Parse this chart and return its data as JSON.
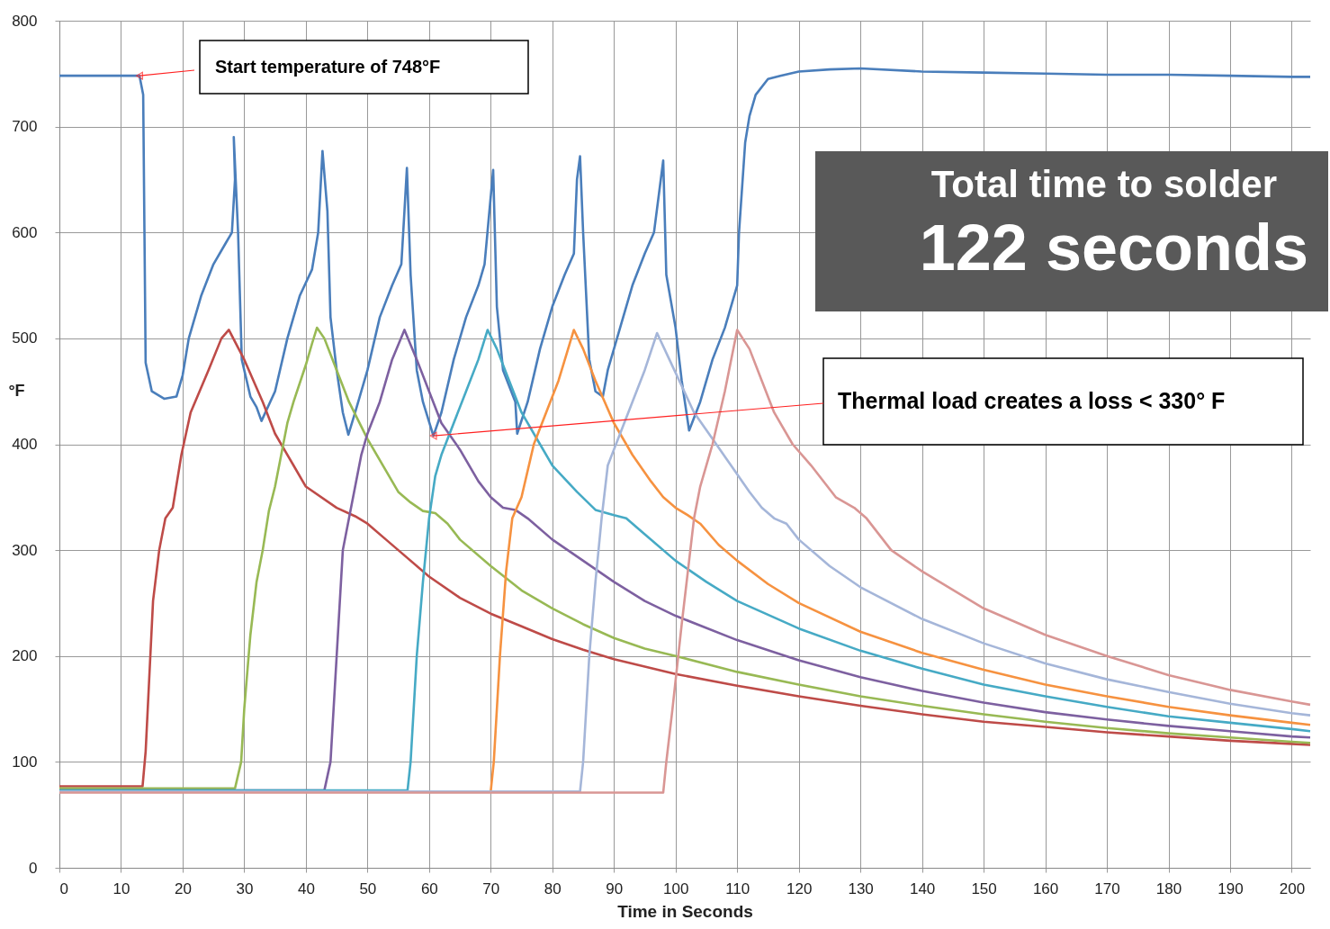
{
  "chart_data": {
    "type": "line",
    "xlabel": "Time in Seconds",
    "ylabel": "°F",
    "xlim": [
      0,
      203
    ],
    "ylim": [
      0,
      800
    ],
    "xticks": [
      0,
      10,
      20,
      30,
      40,
      50,
      60,
      70,
      80,
      90,
      100,
      110,
      120,
      130,
      140,
      150,
      160,
      170,
      180,
      190,
      200
    ],
    "yticks": [
      0,
      100,
      200,
      300,
      400,
      500,
      600,
      700,
      800
    ],
    "grid": true,
    "legend": false,
    "annotations": [
      {
        "text": "Start  temperature of 748°F",
        "x": 13,
        "y": 748
      },
      {
        "text": "Thermal load creates a loss < 330° F",
        "x": 60.7,
        "y": 408
      },
      "Total time to solder",
      "122 seconds"
    ],
    "series": [
      {
        "color": "#4a7ebb",
        "x": [
          0,
          10,
          13,
          13.6,
          14,
          15,
          17,
          19,
          20,
          21,
          23,
          25,
          27,
          28,
          28.5,
          28.3,
          29,
          29.6,
          31,
          32,
          32.8,
          35,
          37,
          39,
          41,
          42,
          42.7,
          43.5,
          44,
          45,
          46,
          46.9,
          48,
          50,
          52,
          54,
          55.5,
          56,
          56.4,
          57,
          58,
          59,
          60.7,
          62,
          64,
          66,
          68,
          69,
          70.4,
          71,
          72,
          74,
          74.3,
          76,
          78,
          80,
          82,
          83.5,
          84,
          84.5,
          85,
          86,
          87,
          88.2,
          89,
          91,
          93,
          95,
          96.5,
          98,
          98.5,
          100,
          101,
          102.2,
          104,
          106,
          108,
          110,
          110.3,
          111.3,
          112,
          113,
          115,
          117,
          120,
          125,
          130,
          140,
          150,
          160,
          170,
          180,
          190,
          200,
          203
        ],
        "values": [
          748,
          748,
          748,
          730,
          477,
          450,
          443,
          445,
          465,
          500,
          540,
          570,
          590,
          600,
          650,
          690,
          600,
          480,
          445,
          435,
          422,
          450,
          500,
          540,
          565,
          600,
          677,
          620,
          520,
          470,
          430,
          409,
          430,
          470,
          520,
          550,
          570,
          620,
          661,
          560,
          470,
          440,
          408,
          430,
          480,
          520,
          550,
          570,
          659,
          530,
          470,
          440,
          410,
          440,
          490,
          530,
          560,
          580,
          650,
          672,
          600,
          480,
          450,
          445,
          470,
          510,
          550,
          580,
          600,
          668,
          560,
          510,
          460,
          413,
          440,
          480,
          510,
          550,
          600,
          685,
          710,
          730,
          745,
          748,
          752,
          754,
          755,
          752,
          751,
          750,
          749,
          749,
          748,
          747,
          747
        ]
      },
      {
        "color": "#be4b48",
        "x": [
          0,
          13.5,
          14,
          15.2,
          16.2,
          17.2,
          18.4,
          19.8,
          21.3,
          24.2,
          26.3,
          27.5,
          30,
          33,
          35,
          38,
          40,
          45,
          48,
          50,
          53,
          55,
          60,
          65,
          70,
          75,
          80,
          85,
          90,
          95,
          100,
          110,
          120,
          130,
          140,
          150,
          160,
          170,
          180,
          190,
          200,
          203
        ],
        "values": [
          77,
          77,
          110,
          252,
          300,
          330,
          340,
          390,
          430,
          470,
          500,
          508,
          480,
          440,
          410,
          380,
          360,
          340,
          332,
          325,
          310,
          300,
          275,
          255,
          240,
          228,
          216,
          206,
          197,
          190,
          183,
          172,
          162,
          153,
          145,
          138,
          133,
          128,
          124,
          120,
          117,
          116
        ]
      },
      {
        "color": "#98b954",
        "x": [
          0,
          28.5,
          29.5,
          30,
          31,
          32,
          33,
          34,
          35,
          36,
          37,
          38,
          40,
          41,
          41.8,
          43,
          45,
          47,
          50,
          53,
          55,
          57,
          59,
          61,
          63,
          65,
          70,
          75,
          80,
          85,
          90,
          95,
          100,
          110,
          120,
          130,
          140,
          150,
          160,
          170,
          180,
          190,
          200,
          203
        ],
        "values": [
          75,
          75,
          100,
          150,
          220,
          270,
          300,
          337,
          360,
          390,
          420,
          440,
          475,
          495,
          510,
          500,
          470,
          440,
          405,
          375,
          355,
          345,
          337,
          335,
          325,
          310,
          285,
          262,
          245,
          230,
          217,
          207,
          200,
          185,
          173,
          162,
          153,
          145,
          138,
          132,
          127,
          123,
          119,
          118
        ]
      },
      {
        "color": "#7d60a0",
        "x": [
          0,
          43,
          44,
          45,
          46,
          47,
          48,
          49,
          50,
          52,
          54,
          56,
          58,
          60,
          62,
          65,
          68,
          70,
          72,
          74,
          76,
          80,
          85,
          90,
          95,
          100,
          110,
          120,
          130,
          140,
          150,
          160,
          170,
          180,
          190,
          200,
          203
        ],
        "values": [
          73,
          73,
          100,
          200,
          300,
          330,
          360,
          390,
          410,
          440,
          480,
          508,
          480,
          450,
          420,
          395,
          365,
          350,
          340,
          338,
          330,
          310,
          290,
          270,
          252,
          238,
          215,
          196,
          180,
          167,
          156,
          147,
          140,
          134,
          129,
          124,
          123
        ]
      },
      {
        "color": "#46aac5",
        "x": [
          0,
          56.5,
          57,
          58,
          59,
          60,
          61,
          62,
          64,
          66,
          68,
          69.5,
          71,
          73,
          75,
          78,
          80,
          84,
          87,
          90,
          92,
          95,
          100,
          105,
          110,
          120,
          130,
          140,
          150,
          160,
          170,
          180,
          190,
          200,
          203
        ],
        "values": [
          73,
          73,
          100,
          200,
          270,
          330,
          370,
          390,
          420,
          450,
          480,
          508,
          490,
          460,
          430,
          400,
          380,
          355,
          338,
          333,
          330,
          315,
          290,
          270,
          252,
          226,
          205,
          188,
          173,
          162,
          152,
          143,
          137,
          131,
          129
        ]
      },
      {
        "color": "#f69240",
        "x": [
          0,
          70,
          70.5,
          71.5,
          72.5,
          73.5,
          75,
          77,
          79,
          81,
          83.5,
          85,
          87,
          90,
          93,
          96,
          98,
          100,
          102,
          104,
          107,
          110,
          115,
          120,
          130,
          140,
          150,
          160,
          170,
          180,
          190,
          200,
          203
        ],
        "values": [
          72,
          72,
          100,
          200,
          280,
          330,
          350,
          400,
          430,
          460,
          508,
          490,
          460,
          420,
          390,
          365,
          350,
          340,
          333,
          325,
          305,
          290,
          268,
          250,
          223,
          203,
          187,
          173,
          162,
          152,
          144,
          137,
          135
        ]
      },
      {
        "color": "#a5b6d9",
        "x": [
          0,
          84.5,
          85,
          86,
          87,
          88,
          89,
          91,
          93,
          95,
          97,
          99,
          101,
          103,
          106,
          109,
          112,
          114,
          116,
          118,
          120,
          125,
          130,
          140,
          150,
          160,
          170,
          180,
          190,
          200,
          203
        ],
        "values": [
          72,
          72,
          100,
          200,
          270,
          330,
          380,
          410,
          440,
          470,
          505,
          480,
          455,
          430,
          405,
          380,
          355,
          340,
          330,
          325,
          310,
          285,
          265,
          235,
          212,
          193,
          178,
          166,
          155,
          146,
          144
        ]
      },
      {
        "color": "#d99694",
        "x": [
          0,
          98,
          98.5,
          99.5,
          101,
          102,
          103,
          104,
          106,
          108,
          110,
          112,
          114,
          116,
          119,
          122,
          126,
          129,
          131,
          135,
          140,
          150,
          160,
          170,
          180,
          190,
          200,
          203
        ],
        "values": [
          71,
          71,
          100,
          150,
          230,
          280,
          330,
          360,
          400,
          450,
          508,
          490,
          460,
          430,
          400,
          380,
          350,
          340,
          330,
          300,
          280,
          245,
          220,
          200,
          182,
          168,
          157,
          154
        ]
      }
    ]
  }
}
